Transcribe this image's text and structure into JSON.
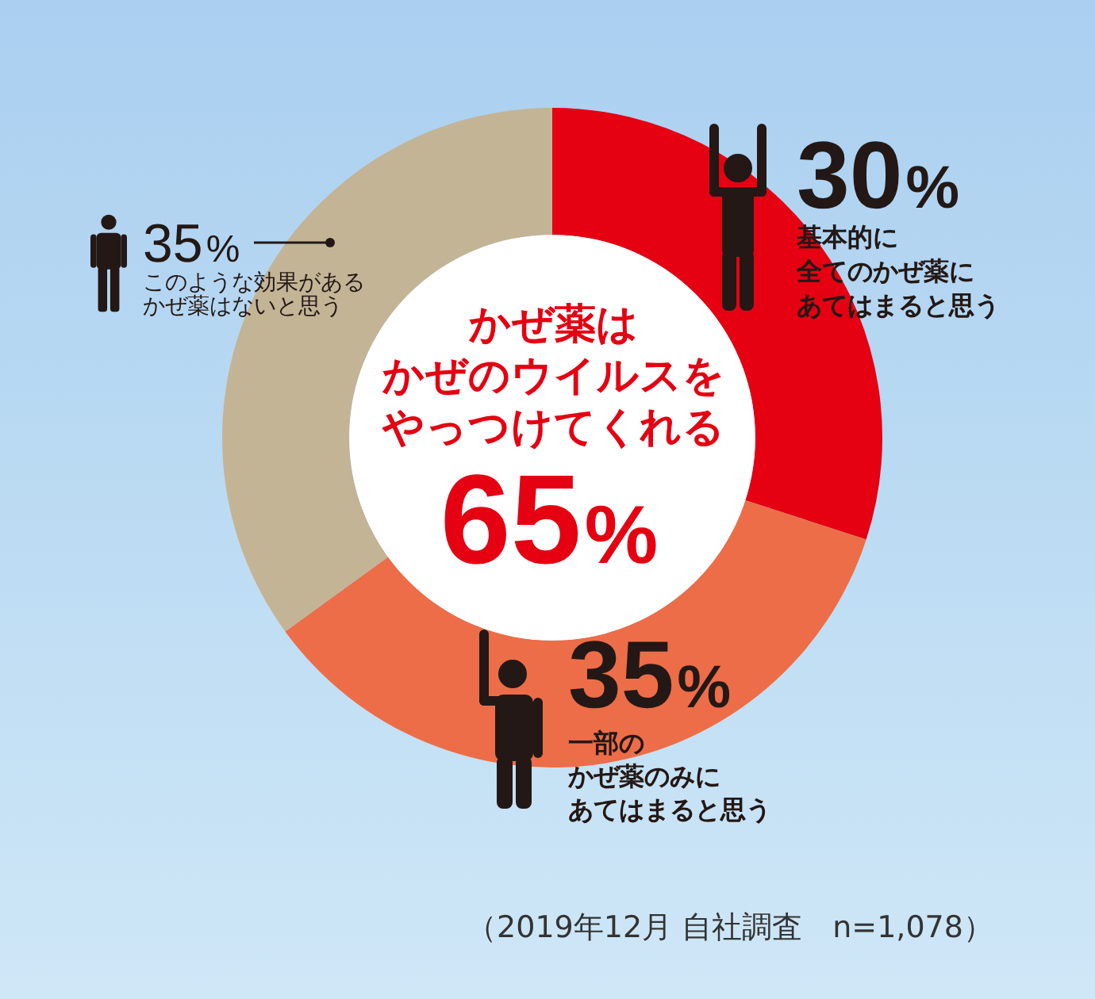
{
  "chart_data": {
    "type": "donut",
    "title": "かぜ薬はかぜのウイルスをやっつけてくれる",
    "categories": [
      "基本的に全てのかぜ薬にあてはまると思う",
      "一部のかぜ薬のみにあてはまると思う",
      "このような効果があるかぜ薬はないと思う"
    ],
    "values": [
      30,
      35,
      35
    ],
    "colors": [
      "#e50012",
      "#ec6d48",
      "#c3b495"
    ],
    "value_labels": [
      "30%",
      "35%",
      "35%"
    ],
    "annotations": [
      "65%",
      "（2019年12月 自社調査　n=1,078）"
    ],
    "legend": false
  }
}
